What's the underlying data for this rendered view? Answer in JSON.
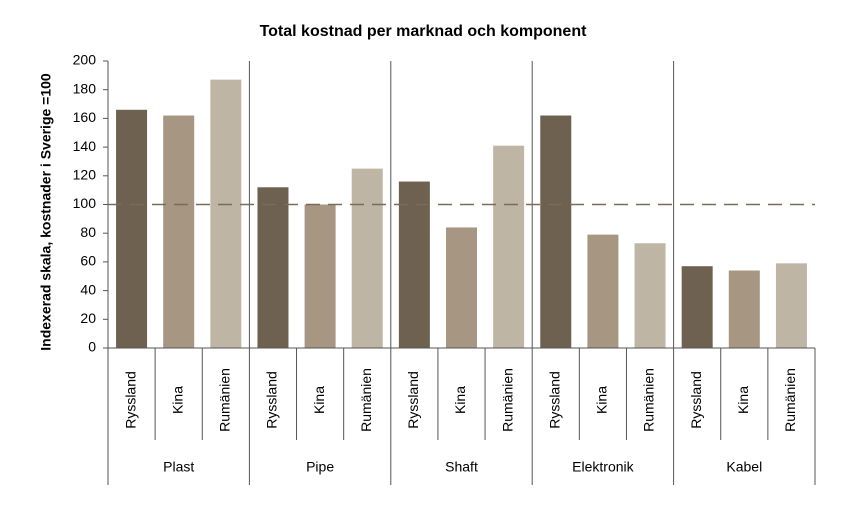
{
  "chart_data": {
    "type": "grouped_bar",
    "title": "Total kostnad per marknad och komponent",
    "y_label": "Indexerad skala, kostnader i Sverige =100",
    "categories": [
      "Plast",
      "Pipe",
      "Shaft",
      "Elektronik",
      "Kabel"
    ],
    "series": [
      {
        "name": "Ryssland",
        "color": "#6e6150",
        "values": [
          166,
          112,
          116,
          162,
          57
        ]
      },
      {
        "name": "Kina",
        "color": "#a69682",
        "values": [
          162,
          100,
          84,
          79,
          54
        ]
      },
      {
        "name": "Rumänien",
        "color": "#bfb5a5",
        "values": [
          187,
          125,
          141,
          73,
          59
        ]
      }
    ],
    "reference_line": 100,
    "ylim": [
      0,
      200
    ],
    "yticks": [
      0,
      20,
      40,
      60,
      80,
      100,
      120,
      140,
      160,
      180,
      200
    ]
  }
}
